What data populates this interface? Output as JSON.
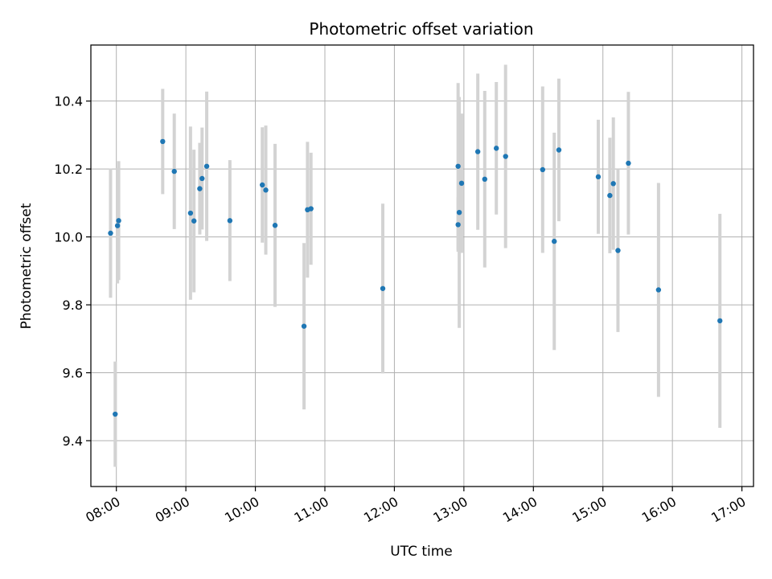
{
  "chart_data": {
    "type": "scatter",
    "title": "Photometric offset variation",
    "xlabel": "UTC time",
    "ylabel": "Photometric offset",
    "x_unit": "UTC time (HH:MM)",
    "xlim": [
      "07:38",
      "17:10"
    ],
    "ylim": [
      9.265,
      10.565
    ],
    "x_ticks": [
      "08:00",
      "09:00",
      "10:00",
      "11:00",
      "12:00",
      "13:00",
      "14:00",
      "15:00",
      "16:00",
      "17:00"
    ],
    "y_ticks": [
      "9.4",
      "9.6",
      "9.8",
      "10.0",
      "10.2",
      "10.4"
    ],
    "grid": true,
    "colors": {
      "point": "#1f77b4",
      "error_bar": "#d3d3d3",
      "grid": "#b0b0b0",
      "axes": "#000000"
    },
    "series": [
      {
        "points": [
          {
            "x": "07:55",
            "y": 10.011,
            "err": 0.19
          },
          {
            "x": "07:59",
            "y": 9.478,
            "err": 0.155
          },
          {
            "x": "08:01",
            "y": 10.033,
            "err": 0.17
          },
          {
            "x": "08:02",
            "y": 10.048,
            "err": 0.175
          },
          {
            "x": "08:40",
            "y": 10.281,
            "err": 0.155
          },
          {
            "x": "08:50",
            "y": 10.193,
            "err": 0.17
          },
          {
            "x": "09:04",
            "y": 10.07,
            "err": 0.255
          },
          {
            "x": "09:07",
            "y": 10.047,
            "err": 0.21
          },
          {
            "x": "09:12",
            "y": 10.142,
            "err": 0.135
          },
          {
            "x": "09:14",
            "y": 10.172,
            "err": 0.15
          },
          {
            "x": "09:18",
            "y": 10.208,
            "err": 0.22
          },
          {
            "x": "09:38",
            "y": 10.048,
            "err": 0.178
          },
          {
            "x": "10:06",
            "y": 10.153,
            "err": 0.17
          },
          {
            "x": "10:09",
            "y": 10.138,
            "err": 0.19
          },
          {
            "x": "10:17",
            "y": 10.034,
            "err": 0.24
          },
          {
            "x": "10:42",
            "y": 9.737,
            "err": 0.245
          },
          {
            "x": "10:45",
            "y": 10.08,
            "err": 0.2
          },
          {
            "x": "10:48",
            "y": 10.083,
            "err": 0.165
          },
          {
            "x": "11:50",
            "y": 9.848,
            "err": 0.25
          },
          {
            "x": "12:55",
            "y": 10.036,
            "err": 0.08
          },
          {
            "x": "12:55",
            "y": 10.208,
            "err": 0.245
          },
          {
            "x": "12:56",
            "y": 10.072,
            "err": 0.34
          },
          {
            "x": "12:58",
            "y": 10.158,
            "err": 0.205
          },
          {
            "x": "13:12",
            "y": 10.251,
            "err": 0.23
          },
          {
            "x": "13:18",
            "y": 10.17,
            "err": 0.26
          },
          {
            "x": "13:28",
            "y": 10.261,
            "err": 0.195
          },
          {
            "x": "13:36",
            "y": 10.237,
            "err": 0.27
          },
          {
            "x": "14:08",
            "y": 10.198,
            "err": 0.245
          },
          {
            "x": "14:18",
            "y": 9.987,
            "err": 0.32
          },
          {
            "x": "14:22",
            "y": 10.256,
            "err": 0.21
          },
          {
            "x": "14:56",
            "y": 10.177,
            "err": 0.168
          },
          {
            "x": "15:06",
            "y": 10.122,
            "err": 0.17
          },
          {
            "x": "15:09",
            "y": 10.157,
            "err": 0.195
          },
          {
            "x": "15:13",
            "y": 9.96,
            "err": 0.24
          },
          {
            "x": "15:22",
            "y": 10.217,
            "err": 0.21
          },
          {
            "x": "15:48",
            "y": 9.844,
            "err": 0.315
          },
          {
            "x": "16:41",
            "y": 9.753,
            "err": 0.315
          }
        ]
      }
    ]
  }
}
